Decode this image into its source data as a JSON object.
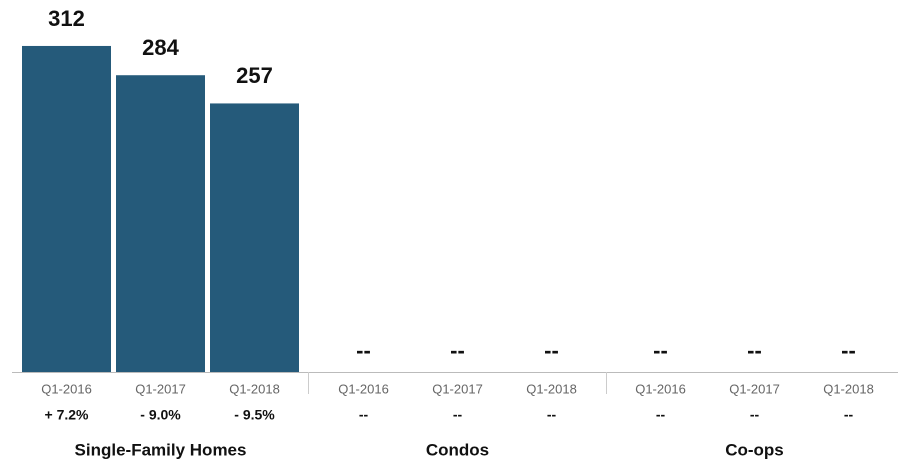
{
  "chart_data": {
    "type": "bar",
    "color": "#255a7a",
    "ylim": [
      0,
      320
    ],
    "groups": [
      {
        "name": "Single-Family Homes",
        "categories": [
          "Q1-2016",
          "Q1-2017",
          "Q1-2018"
        ],
        "values": [
          312,
          284,
          257
        ],
        "changes": [
          "+ 7.2%",
          "- 9.0%",
          "- 9.5%"
        ]
      },
      {
        "name": "Condos",
        "categories": [
          "Q1-2016",
          "Q1-2017",
          "Q1-2018"
        ],
        "values": [
          null,
          null,
          null
        ],
        "value_labels": [
          "--",
          "--",
          "--"
        ],
        "changes": [
          "--",
          "--",
          "--"
        ]
      },
      {
        "name": "Co-ops",
        "categories": [
          "Q1-2016",
          "Q1-2017",
          "Q1-2018"
        ],
        "values": [
          null,
          null,
          null
        ],
        "value_labels": [
          "--",
          "--",
          "--"
        ],
        "changes": [
          "--",
          "--",
          "--"
        ]
      }
    ]
  }
}
